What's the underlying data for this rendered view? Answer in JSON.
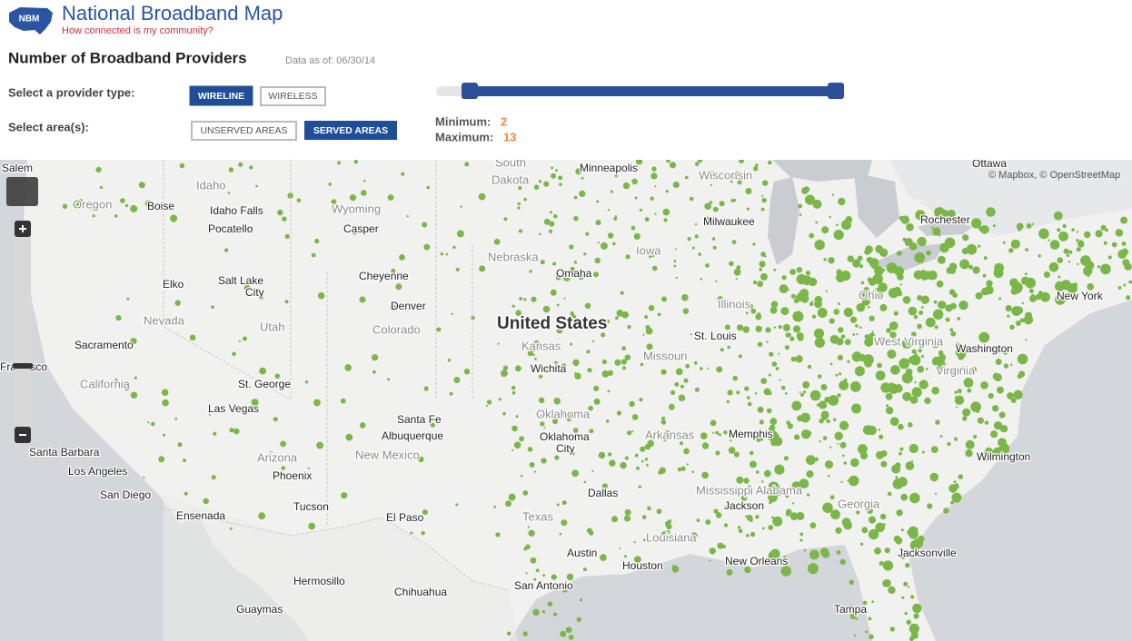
{
  "header": {
    "logo": "NBM",
    "title": "National Broadband Map",
    "subtitle": "How connected is my community?"
  },
  "panel": {
    "title": "Number of Broadband Providers",
    "data_date": "Data as of: 06/30/14",
    "provider_type_label": "Select a provider type:",
    "provider_types": [
      "WIRELINE",
      "WIRELESS"
    ],
    "area_label": "Select area(s):",
    "areas": [
      "UNSERVED AREAS",
      "SERVED AREAS"
    ],
    "minimum_label": "Minimum:",
    "minimum": 2,
    "maximum_label": "Maximum:",
    "maximum": 13
  },
  "map": {
    "attribution": "© Mapbox, © OpenStreetMap",
    "labels": [
      "Salem",
      "Oregon",
      "Idaho",
      "Boise",
      "Idaho Falls",
      "Pocatello",
      "Wyoming",
      "Casper",
      "South",
      "Dakota",
      "Minneapolis",
      "Wisconsin",
      "Ottawa",
      "Rochester",
      "Milwaukee",
      "Iowa",
      "Nebraska",
      "Omaha",
      "Cheyenne",
      "Elko",
      "Salt Lake",
      "City",
      "Nevada",
      "Utah",
      "Denver",
      "Colorado",
      "United States",
      "Kansas",
      "Illinois",
      "Ohio",
      "New York",
      "Sacramento",
      "St. Louis",
      "Missouri",
      "West Virginia",
      "Washington",
      "Wichita",
      "Virginia",
      "Francisco",
      "California",
      "St. George",
      "Las Vegas",
      "Oklahoma",
      "Oklahoma",
      "City",
      "Arkansas",
      "Memphis",
      "Santa Fe",
      "Albuquerque",
      "New Mexico",
      "Arizona",
      "Phoenix",
      "Santa Barbara",
      "Los Angeles",
      "Wilmington",
      "Dallas",
      "Mississippi Alabama",
      "Jackson",
      "Georgia",
      "San Diego",
      "Ensenada",
      "Tucson",
      "El Paso",
      "Texas",
      "Louisiana",
      "Austin",
      "Houston",
      "New Orleans",
      "Jacksonville",
      "Hermosillo",
      "Chihuahua",
      "San Antonio",
      "Guaymas",
      "Tampa"
    ]
  }
}
